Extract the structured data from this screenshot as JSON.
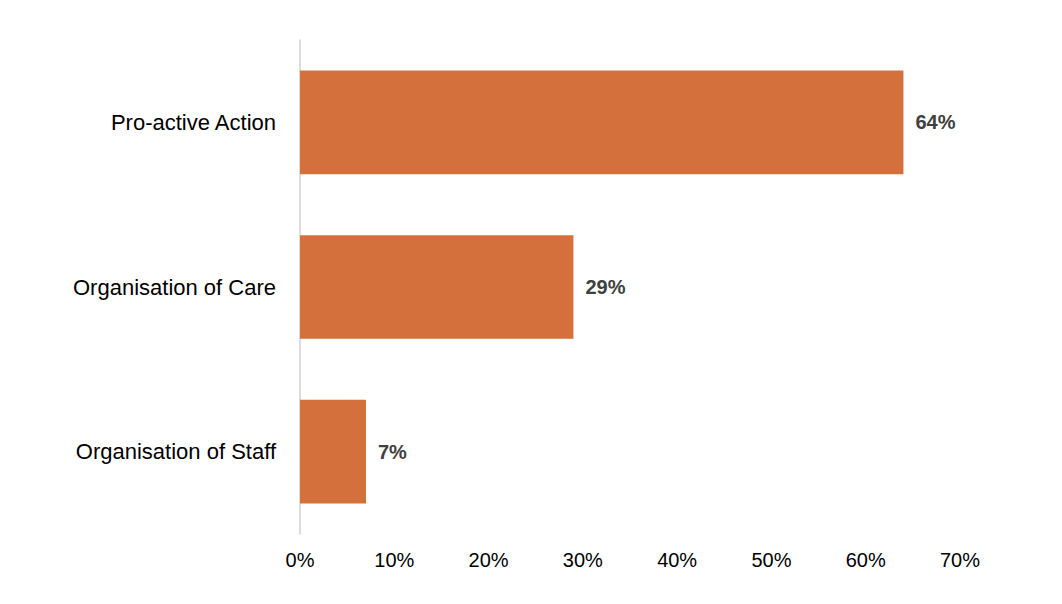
{
  "chart_data": {
    "type": "bar",
    "orientation": "horizontal",
    "categories": [
      "Pro-active Action",
      "Organisation of Care",
      "Organisation of Staff"
    ],
    "values": [
      64,
      29,
      7
    ],
    "value_labels": [
      "64%",
      "29%",
      "7%"
    ],
    "data_labels": true,
    "color": "#d4703c",
    "xlim": [
      0,
      70
    ],
    "xticks": [
      {
        "value": 0,
        "label": "0%"
      },
      {
        "value": 10,
        "label": "10%"
      },
      {
        "value": 20,
        "label": "20%"
      },
      {
        "value": 30,
        "label": "30%"
      },
      {
        "value": 40,
        "label": "40%"
      },
      {
        "value": 50,
        "label": "50%"
      },
      {
        "value": 60,
        "label": "60%"
      },
      {
        "value": 70,
        "label": "70%"
      }
    ],
    "grid": false
  }
}
